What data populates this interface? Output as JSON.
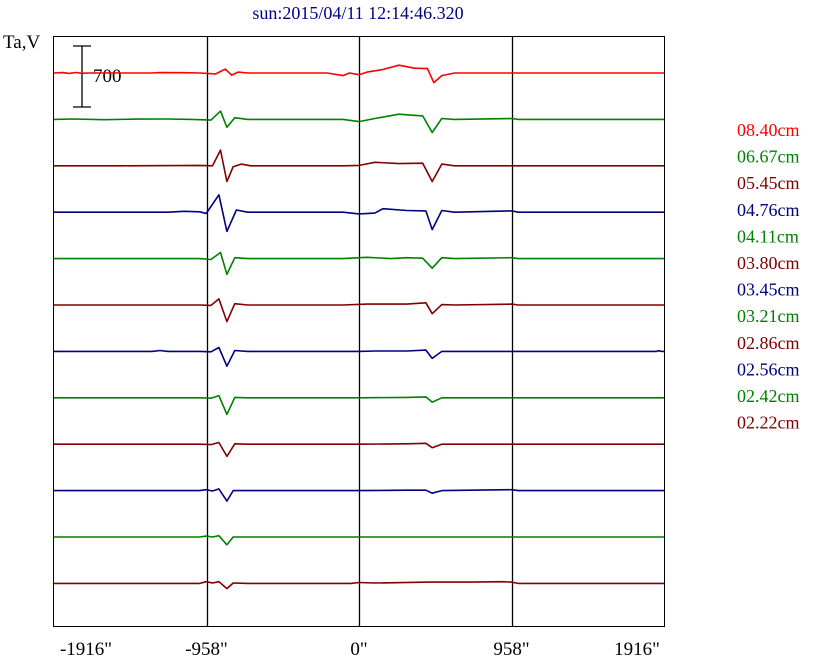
{
  "chart_data": {
    "type": "line",
    "title": "sun:2015/04/11 12:14:46.320",
    "ylabel": "Ta,V",
    "xlabel": "",
    "x_tick_labels": [
      "-1916\"",
      "-958\"",
      "0\"",
      "958\"",
      "1916\""
    ],
    "x_ticks": [
      -1916,
      -958,
      0,
      958,
      1916
    ],
    "xlim": [
      -1916,
      1916
    ],
    "scale_bar": {
      "label": "700",
      "value": 700
    },
    "grid": {
      "vertical_lines_at": [
        -958,
        0,
        958
      ],
      "horizontal": false
    },
    "legend_position": "right",
    "colors": {
      "red": "#ff0000",
      "green": "#008000",
      "maroon": "#800000",
      "navy": "#000080",
      "frame": "#000000",
      "title": "#000080"
    },
    "series": [
      {
        "name": "08.40cm",
        "color": "#ff0000",
        "profile": [
          [
            -1916,
            0
          ],
          [
            -1860,
            5
          ],
          [
            -1820,
            -5
          ],
          [
            -1780,
            6
          ],
          [
            -1740,
            -4
          ],
          [
            -1700,
            0
          ],
          [
            -1300,
            0
          ],
          [
            -1250,
            5
          ],
          [
            -1100,
            4
          ],
          [
            -1000,
            0
          ],
          [
            -900,
            -10
          ],
          [
            -840,
            45
          ],
          [
            -800,
            -25
          ],
          [
            -760,
            10
          ],
          [
            -700,
            0
          ],
          [
            -200,
            0
          ],
          [
            -100,
            -30
          ],
          [
            -60,
            0
          ],
          [
            0,
            -20
          ],
          [
            50,
            10
          ],
          [
            150,
            40
          ],
          [
            250,
            90
          ],
          [
            350,
            55
          ],
          [
            430,
            50
          ],
          [
            470,
            -110
          ],
          [
            520,
            -30
          ],
          [
            600,
            0
          ],
          [
            800,
            0
          ],
          [
            958,
            0
          ],
          [
            1916,
            0
          ]
        ]
      },
      {
        "name": "06.67cm",
        "color": "#008000",
        "profile": [
          [
            -1916,
            0
          ],
          [
            -1800,
            5
          ],
          [
            -1600,
            -4
          ],
          [
            -1400,
            3
          ],
          [
            -1200,
            5
          ],
          [
            -1050,
            0
          ],
          [
            -930,
            -8
          ],
          [
            -870,
            95
          ],
          [
            -830,
            -90
          ],
          [
            -780,
            20
          ],
          [
            -700,
            0
          ],
          [
            -100,
            0
          ],
          [
            0,
            -25
          ],
          [
            100,
            10
          ],
          [
            250,
            60
          ],
          [
            400,
            40
          ],
          [
            460,
            -150
          ],
          [
            520,
            10
          ],
          [
            600,
            0
          ],
          [
            960,
            10
          ],
          [
            1000,
            0
          ],
          [
            1916,
            0
          ]
        ]
      },
      {
        "name": "05.45cm",
        "color": "#800000",
        "profile": [
          [
            -1916,
            0
          ],
          [
            -1500,
            0
          ],
          [
            -1000,
            5
          ],
          [
            -920,
            0
          ],
          [
            -870,
            180
          ],
          [
            -830,
            -180
          ],
          [
            -790,
            -10
          ],
          [
            -740,
            20
          ],
          [
            -680,
            0
          ],
          [
            -100,
            0
          ],
          [
            0,
            5
          ],
          [
            100,
            40
          ],
          [
            250,
            25
          ],
          [
            400,
            30
          ],
          [
            460,
            -180
          ],
          [
            520,
            20
          ],
          [
            600,
            0
          ],
          [
            1916,
            0
          ]
        ]
      },
      {
        "name": "04.76cm",
        "color": "#000080",
        "profile": [
          [
            -1916,
            0
          ],
          [
            -1200,
            0
          ],
          [
            -1100,
            10
          ],
          [
            -1000,
            5
          ],
          [
            -960,
            -15
          ],
          [
            -880,
            200
          ],
          [
            -830,
            -220
          ],
          [
            -770,
            25
          ],
          [
            -700,
            0
          ],
          [
            -100,
            0
          ],
          [
            0,
            -20
          ],
          [
            100,
            -10
          ],
          [
            150,
            40
          ],
          [
            300,
            20
          ],
          [
            420,
            15
          ],
          [
            460,
            -200
          ],
          [
            520,
            20
          ],
          [
            600,
            0
          ],
          [
            960,
            15
          ],
          [
            1000,
            0
          ],
          [
            1916,
            0
          ]
        ]
      },
      {
        "name": "04.11cm",
        "color": "#008000",
        "profile": [
          [
            -1916,
            0
          ],
          [
            -1000,
            0
          ],
          [
            -930,
            -10
          ],
          [
            -870,
            70
          ],
          [
            -830,
            -180
          ],
          [
            -780,
            10
          ],
          [
            -700,
            0
          ],
          [
            -100,
            0
          ],
          [
            50,
            15
          ],
          [
            200,
            0
          ],
          [
            300,
            10
          ],
          [
            400,
            5
          ],
          [
            460,
            -110
          ],
          [
            520,
            10
          ],
          [
            600,
            0
          ],
          [
            960,
            10
          ],
          [
            1000,
            0
          ],
          [
            1916,
            0
          ]
        ]
      },
      {
        "name": "03.80cm",
        "color": "#800000",
        "profile": [
          [
            -1916,
            0
          ],
          [
            -1000,
            0
          ],
          [
            -930,
            -5
          ],
          [
            -880,
            70
          ],
          [
            -830,
            -190
          ],
          [
            -780,
            15
          ],
          [
            -700,
            0
          ],
          [
            -100,
            0
          ],
          [
            50,
            10
          ],
          [
            300,
            10
          ],
          [
            420,
            25
          ],
          [
            460,
            -100
          ],
          [
            520,
            5
          ],
          [
            600,
            0
          ],
          [
            960,
            10
          ],
          [
            1000,
            0
          ],
          [
            1916,
            0
          ]
        ]
      },
      {
        "name": "03.45cm",
        "color": "#000080",
        "profile": [
          [
            -1916,
            0
          ],
          [
            -1300,
            0
          ],
          [
            -1250,
            10
          ],
          [
            -1200,
            0
          ],
          [
            -1000,
            0
          ],
          [
            -930,
            -5
          ],
          [
            -880,
            45
          ],
          [
            -830,
            -170
          ],
          [
            -780,
            10
          ],
          [
            -700,
            0
          ],
          [
            0,
            0
          ],
          [
            100,
            5
          ],
          [
            300,
            5
          ],
          [
            420,
            15
          ],
          [
            460,
            -80
          ],
          [
            520,
            0
          ],
          [
            1000,
            0
          ],
          [
            1870,
            0
          ],
          [
            1880,
            8
          ],
          [
            1900,
            0
          ],
          [
            1916,
            0
          ]
        ]
      },
      {
        "name": "03.21cm",
        "color": "#008000",
        "profile": [
          [
            -1916,
            0
          ],
          [
            -1000,
            0
          ],
          [
            -930,
            -5
          ],
          [
            -880,
            25
          ],
          [
            -830,
            -190
          ],
          [
            -780,
            5
          ],
          [
            -700,
            0
          ],
          [
            0,
            0
          ],
          [
            300,
            5
          ],
          [
            420,
            10
          ],
          [
            460,
            -50
          ],
          [
            520,
            0
          ],
          [
            1000,
            0
          ],
          [
            1916,
            0
          ]
        ]
      },
      {
        "name": "02.86cm",
        "color": "#800000",
        "profile": [
          [
            -1916,
            0
          ],
          [
            -1000,
            0
          ],
          [
            -930,
            -5
          ],
          [
            -880,
            20
          ],
          [
            -830,
            -140
          ],
          [
            -780,
            5
          ],
          [
            -700,
            0
          ],
          [
            0,
            0
          ],
          [
            300,
            5
          ],
          [
            420,
            10
          ],
          [
            460,
            -40
          ],
          [
            520,
            0
          ],
          [
            1000,
            0
          ],
          [
            1916,
            0
          ]
        ]
      },
      {
        "name": "02.56cm",
        "color": "#000080",
        "profile": [
          [
            -1916,
            0
          ],
          [
            -1000,
            0
          ],
          [
            -960,
            10
          ],
          [
            -920,
            -5
          ],
          [
            -880,
            20
          ],
          [
            -830,
            -120
          ],
          [
            -790,
            0
          ],
          [
            -700,
            0
          ],
          [
            0,
            0
          ],
          [
            300,
            5
          ],
          [
            420,
            5
          ],
          [
            460,
            -30
          ],
          [
            520,
            0
          ],
          [
            960,
            10
          ],
          [
            1000,
            0
          ],
          [
            1916,
            0
          ]
        ]
      },
      {
        "name": "02.42cm",
        "color": "#008000",
        "profile": [
          [
            -1916,
            0
          ],
          [
            -1000,
            0
          ],
          [
            -960,
            10
          ],
          [
            -920,
            0
          ],
          [
            -880,
            15
          ],
          [
            -830,
            -90
          ],
          [
            -790,
            0
          ],
          [
            -700,
            0
          ],
          [
            0,
            0
          ],
          [
            958,
            0
          ],
          [
            1916,
            0
          ]
        ]
      },
      {
        "name": "02.22cm",
        "color": "#800000",
        "profile": [
          [
            -1916,
            0
          ],
          [
            -1000,
            0
          ],
          [
            -960,
            20
          ],
          [
            -920,
            5
          ],
          [
            -880,
            20
          ],
          [
            -830,
            -60
          ],
          [
            -790,
            5
          ],
          [
            -700,
            0
          ],
          [
            -50,
            0
          ],
          [
            0,
            10
          ],
          [
            100,
            5
          ],
          [
            450,
            15
          ],
          [
            700,
            15
          ],
          [
            900,
            20
          ],
          [
            958,
            15
          ],
          [
            1000,
            0
          ],
          [
            1916,
            0
          ]
        ]
      }
    ]
  }
}
